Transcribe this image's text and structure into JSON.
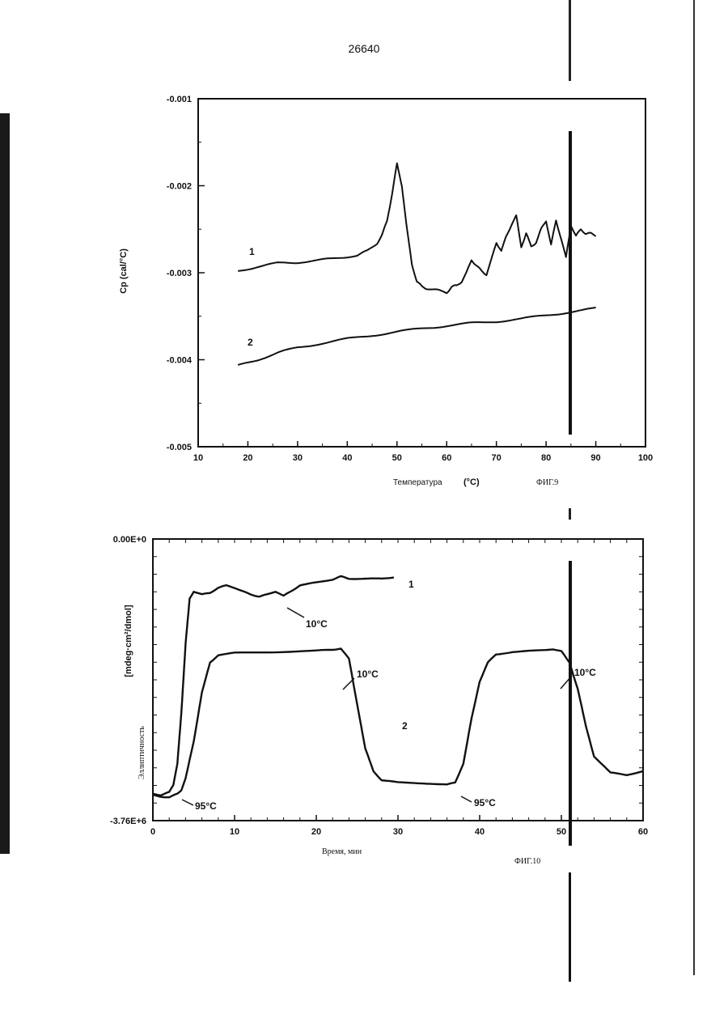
{
  "page_number": "26640",
  "chart_data": [
    {
      "type": "line",
      "figure_label": "ФИГ.9",
      "xlabel": "Температура",
      "xunit": "(°C)",
      "ylabel": "Cp (cal/°C)",
      "xlim": [
        10,
        100
      ],
      "ylim": [
        -0.005,
        -0.001
      ],
      "x_ticks": [
        "10",
        "20",
        "30",
        "40",
        "50",
        "60",
        "70",
        "80",
        "90",
        "100"
      ],
      "y_ticks": [
        "-0.001",
        "-0.002",
        "-0.003",
        "-0.004",
        "-0.005"
      ],
      "series": [
        {
          "name": "1",
          "x": [
            18,
            22,
            26,
            30,
            34,
            38,
            42,
            44,
            46,
            47,
            48,
            49,
            50,
            51,
            52,
            53,
            54,
            55,
            56,
            58,
            60,
            61,
            62,
            63,
            64,
            65,
            66,
            67,
            68,
            69,
            70,
            71,
            72,
            73,
            74,
            75,
            76,
            77,
            78,
            79,
            80,
            81,
            82,
            83,
            84,
            85,
            86,
            87,
            88,
            89,
            90
          ],
          "y": [
            -0.00298,
            -0.00293,
            -0.00289,
            -0.00288,
            -0.00286,
            -0.00283,
            -0.0028,
            -0.00275,
            -0.00266,
            -0.00257,
            -0.0024,
            -0.0021,
            -0.00175,
            -0.002,
            -0.0025,
            -0.0029,
            -0.0031,
            -0.00316,
            -0.00318,
            -0.0032,
            -0.00323,
            -0.00316,
            -0.00315,
            -0.0031,
            -0.003,
            -0.00285,
            -0.00292,
            -0.00298,
            -0.00302,
            -0.00285,
            -0.00265,
            -0.00275,
            -0.00258,
            -0.00245,
            -0.00235,
            -0.0027,
            -0.00255,
            -0.0027,
            -0.00265,
            -0.0025,
            -0.0024,
            -0.00268,
            -0.0024,
            -0.0026,
            -0.00283,
            -0.00245,
            -0.00258,
            -0.0025,
            -0.00255,
            -0.00255,
            -0.00257
          ]
        },
        {
          "name": "2",
          "x": [
            18,
            22,
            26,
            30,
            35,
            40,
            45,
            50,
            55,
            60,
            65,
            70,
            75,
            80,
            85,
            90
          ],
          "y": [
            -0.00407,
            -0.004,
            -0.00392,
            -0.00386,
            -0.00381,
            -0.00376,
            -0.00372,
            -0.00368,
            -0.00364,
            -0.00361,
            -0.00358,
            -0.00356,
            -0.00353,
            -0.00349,
            -0.00345,
            -0.00341
          ]
        }
      ]
    },
    {
      "type": "line",
      "figure_label": "ФИГ.10",
      "xlabel": "Время, мин",
      "ylabel_line1": "[mdeg·cm²/dmol]",
      "ylabel_line2": "Эллиптичность",
      "xlim": [
        0,
        60
      ],
      "ylim": [
        -3760000,
        0
      ],
      "x_ticks": [
        "0",
        "10",
        "20",
        "30",
        "40",
        "50",
        "60"
      ],
      "y_ticks": [
        "0.00E+0",
        "-3.76E+6"
      ],
      "annotations": [
        "10°C",
        "10°C",
        "10°C",
        "95°C",
        "95°C"
      ],
      "series": [
        {
          "name": "1",
          "x": [
            0,
            1,
            2,
            2.5,
            3,
            3.5,
            4,
            4.5,
            5,
            6,
            7,
            8,
            9,
            10,
            11,
            12,
            13,
            14,
            15,
            16,
            17,
            18,
            20,
            22,
            23,
            24,
            26,
            28,
            29.5
          ],
          "y": [
            -3400000,
            -3420000,
            -3380000,
            -3280000,
            -3000000,
            -2300000,
            -1400000,
            -800000,
            -700000,
            -740000,
            -720000,
            -650000,
            -620000,
            -650000,
            -700000,
            -740000,
            -770000,
            -740000,
            -700000,
            -760000,
            -690000,
            -620000,
            -580000,
            -540000,
            -500000,
            -530000,
            -530000,
            -530000,
            -510000
          ]
        },
        {
          "name": "2",
          "x": [
            0,
            1,
            2,
            3,
            3.5,
            4,
            5,
            6,
            7,
            8,
            10,
            15,
            20,
            22,
            23,
            24,
            25,
            26,
            27,
            28,
            30,
            33,
            36,
            37,
            38,
            39,
            40,
            41,
            42,
            44,
            47,
            49,
            50,
            51,
            52,
            53,
            54,
            56,
            58,
            60
          ],
          "y": [
            -3420000,
            -3440000,
            -3450000,
            -3400000,
            -3350000,
            -3200000,
            -2700000,
            -2050000,
            -1650000,
            -1550000,
            -1520000,
            -1510000,
            -1490000,
            -1480000,
            -1460000,
            -1600000,
            -2200000,
            -2800000,
            -3100000,
            -3220000,
            -3250000,
            -3260000,
            -3280000,
            -3250000,
            -3000000,
            -2400000,
            -1900000,
            -1650000,
            -1540000,
            -1510000,
            -1490000,
            -1470000,
            -1500000,
            -1650000,
            -2000000,
            -2500000,
            -2900000,
            -3120000,
            -3150000,
            -3100000
          ]
        }
      ]
    }
  ]
}
